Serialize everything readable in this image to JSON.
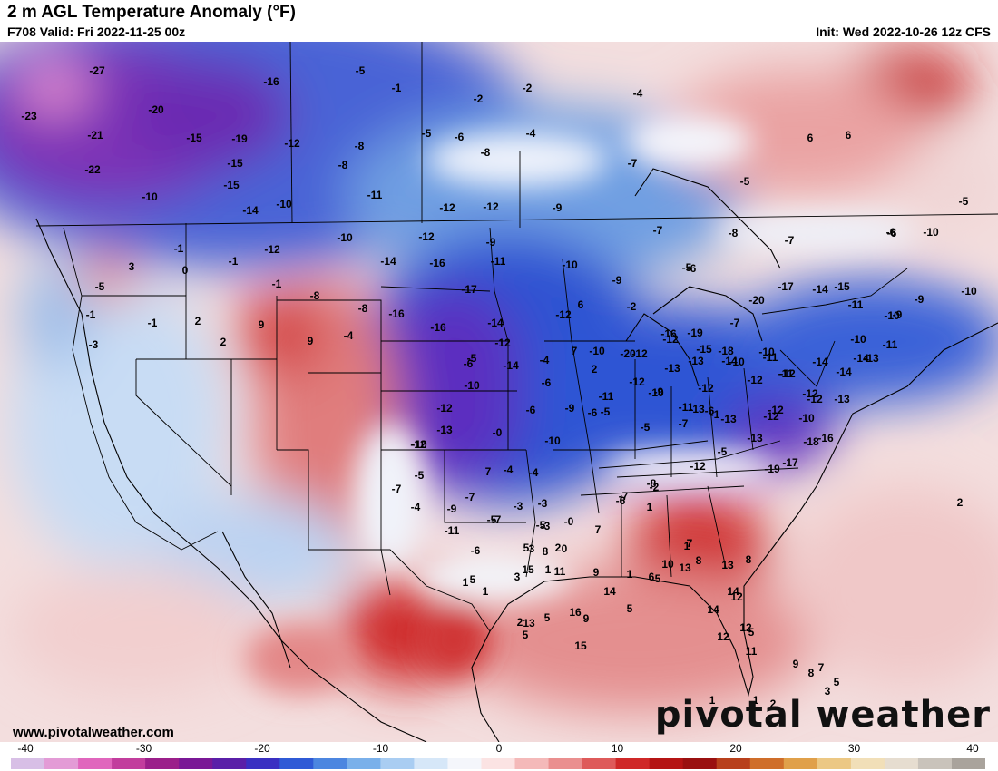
{
  "header": {
    "title": "2 m AGL Temperature Anomaly (°F)",
    "valid": "F708 Valid: Fri 2022-11-25 00z",
    "init": "Init: Wed 2022-10-26 12z CFS"
  },
  "footer": {
    "site": "www.pivotalweather.com",
    "brand": "pivotal weather"
  },
  "colorbar": {
    "ticks": [
      "-40",
      "-30",
      "-20",
      "-10",
      "0",
      "10",
      "20",
      "30",
      "40"
    ],
    "colors": [
      "#d8bfe6",
      "#e39bd6",
      "#e066bd",
      "#c23d9d",
      "#9b1f8a",
      "#7a1896",
      "#5a1fa8",
      "#3a2fc2",
      "#2f5ad6",
      "#4c86e0",
      "#7ab0ea",
      "#a9cdf2",
      "#d6e7f8",
      "#f4f6fb",
      "#fbe3e3",
      "#f4b9b9",
      "#ea8f8f",
      "#de5a5a",
      "#cf2828",
      "#b51414",
      "#9a1010",
      "#b8401c",
      "#cf6e2a",
      "#e0a04a",
      "#ecc884",
      "#f1dfb8",
      "#e6ddd0",
      "#c9c3bb",
      "#a9a39c"
    ]
  },
  "map": {
    "anomaly_labels": [
      {
        "t": "-27"
      },
      {
        "t": "-23"
      },
      {
        "t": "-21"
      },
      {
        "t": "-22"
      },
      {
        "t": "-20"
      },
      {
        "t": "-15"
      },
      {
        "t": "-19"
      },
      {
        "t": "-15"
      },
      {
        "t": "-16"
      },
      {
        "t": "-12"
      },
      {
        "t": "-15"
      },
      {
        "t": "-10"
      },
      {
        "t": "-14"
      },
      {
        "t": "-10"
      },
      {
        "t": "-5"
      },
      {
        "t": "-1"
      },
      {
        "t": "-8"
      },
      {
        "t": "-8"
      },
      {
        "t": "-11"
      },
      {
        "t": "-2"
      },
      {
        "t": "-2"
      },
      {
        "t": "-4"
      },
      {
        "t": "-5"
      },
      {
        "t": "-6"
      },
      {
        "t": "-8"
      },
      {
        "t": "-7"
      },
      {
        "t": "-12"
      },
      {
        "t": "-12"
      },
      {
        "t": "-9"
      },
      {
        "t": "-5"
      },
      {
        "t": "-4"
      },
      {
        "t": "6"
      },
      {
        "t": "6"
      },
      {
        "t": "-6"
      },
      {
        "t": "-1"
      },
      {
        "t": "-5"
      },
      {
        "t": "3"
      },
      {
        "t": "0"
      },
      {
        "t": "-1"
      },
      {
        "t": "-12"
      },
      {
        "t": "-10"
      },
      {
        "t": "-12"
      },
      {
        "t": "-9"
      },
      {
        "t": "-11"
      },
      {
        "t": "-14"
      },
      {
        "t": "-16"
      },
      {
        "t": "-17"
      },
      {
        "t": "-8"
      },
      {
        "t": "-1"
      },
      {
        "t": "-1"
      },
      {
        "t": "2"
      },
      {
        "t": "9"
      },
      {
        "t": "-1"
      },
      {
        "t": "-3"
      },
      {
        "t": "2"
      },
      {
        "t": "9"
      },
      {
        "t": "-4"
      },
      {
        "t": "-8"
      },
      {
        "t": "-16"
      },
      {
        "t": "-16"
      },
      {
        "t": "-14"
      },
      {
        "t": "-12"
      },
      {
        "t": "-14"
      },
      {
        "t": "-12"
      },
      {
        "t": "-10"
      },
      {
        "t": "-9"
      },
      {
        "t": "-7"
      },
      {
        "t": "-6"
      },
      {
        "t": "-8"
      },
      {
        "t": "-7"
      },
      {
        "t": "-6"
      },
      {
        "t": "-10"
      },
      {
        "t": "-5"
      },
      {
        "t": "-7"
      },
      {
        "t": "-5"
      },
      {
        "t": "-2"
      },
      {
        "t": "6"
      },
      {
        "t": "-5"
      },
      {
        "t": "-4"
      },
      {
        "t": "7"
      },
      {
        "t": "2"
      },
      {
        "t": "-20"
      },
      {
        "t": "-16"
      },
      {
        "t": "-19"
      },
      {
        "t": "-18"
      },
      {
        "t": "-20"
      },
      {
        "t": "-17"
      },
      {
        "t": "-15"
      },
      {
        "t": "-14"
      },
      {
        "t": "-10"
      },
      {
        "t": "-9"
      },
      {
        "t": "-10"
      },
      {
        "t": "-9"
      },
      {
        "t": "-11"
      },
      {
        "t": "-10"
      },
      {
        "t": "-11"
      },
      {
        "t": "-13"
      },
      {
        "t": "-14"
      },
      {
        "t": "-14"
      },
      {
        "t": "-14"
      },
      {
        "t": "-13"
      },
      {
        "t": "-12"
      },
      {
        "t": "-12"
      },
      {
        "t": "-11"
      },
      {
        "t": "-10"
      },
      {
        "t": "-10"
      },
      {
        "t": "-12"
      },
      {
        "t": "-14"
      },
      {
        "t": "-15"
      },
      {
        "t": "-13"
      },
      {
        "t": "-12"
      },
      {
        "t": "-13"
      },
      {
        "t": "-12"
      },
      {
        "t": "-10"
      },
      {
        "t": "-9"
      },
      {
        "t": "-11"
      },
      {
        "t": "-12"
      },
      {
        "t": "-13"
      },
      {
        "t": "-13"
      },
      {
        "t": "-12"
      },
      {
        "t": "-11"
      },
      {
        "t": "-12"
      },
      {
        "t": "-10"
      },
      {
        "t": "-16"
      },
      {
        "t": "-18"
      },
      {
        "t": "-17"
      },
      {
        "t": "-19"
      },
      {
        "t": "-13"
      },
      {
        "t": "-12"
      },
      {
        "t": "-6"
      },
      {
        "t": "-7"
      },
      {
        "t": "-5"
      },
      {
        "t": "-12"
      },
      {
        "t": "-10"
      },
      {
        "t": "-11"
      },
      {
        "t": "-9"
      },
      {
        "t": "-6"
      },
      {
        "t": "-0"
      },
      {
        "t": "-6"
      },
      {
        "t": "7"
      },
      {
        "t": "-13"
      },
      {
        "t": "-12"
      },
      {
        "t": "-6"
      },
      {
        "t": "-10"
      },
      {
        "t": "-10"
      },
      {
        "t": "-6"
      },
      {
        "t": "-5"
      },
      {
        "t": "-1"
      },
      {
        "t": "-5"
      },
      {
        "t": "-12"
      },
      {
        "t": "-8"
      },
      {
        "t": "-7"
      },
      {
        "t": "-6"
      },
      {
        "t": "-2"
      },
      {
        "t": "-0"
      },
      {
        "t": "-3"
      },
      {
        "t": "-5"
      },
      {
        "t": "-4"
      },
      {
        "t": "-7"
      },
      {
        "t": "-4"
      },
      {
        "t": "-3"
      },
      {
        "t": "-3"
      },
      {
        "t": "-5"
      },
      {
        "t": "-4"
      },
      {
        "t": "-11"
      },
      {
        "t": "-10"
      },
      {
        "t": "-12"
      },
      {
        "t": "-9"
      },
      {
        "t": "-7"
      },
      {
        "t": "-7"
      },
      {
        "t": "-6"
      },
      {
        "t": "3"
      },
      {
        "t": "2"
      },
      {
        "t": "-5"
      },
      {
        "t": "7"
      },
      {
        "t": "1"
      },
      {
        "t": "3"
      },
      {
        "t": "1"
      },
      {
        "t": "1"
      },
      {
        "t": "1"
      },
      {
        "t": "5"
      },
      {
        "t": "2"
      },
      {
        "t": "0"
      },
      {
        "t": "1"
      },
      {
        "t": "14"
      },
      {
        "t": "9"
      },
      {
        "t": "8"
      },
      {
        "t": "5"
      },
      {
        "t": "15"
      },
      {
        "t": "16"
      },
      {
        "t": "15"
      },
      {
        "t": "13"
      },
      {
        "t": "11"
      },
      {
        "t": "5"
      },
      {
        "t": "5"
      },
      {
        "t": "9"
      },
      {
        "t": "5"
      },
      {
        "t": "6"
      },
      {
        "t": "10"
      },
      {
        "t": "1"
      },
      {
        "t": "8"
      },
      {
        "t": "7"
      },
      {
        "t": "8"
      },
      {
        "t": "5"
      },
      {
        "t": "13"
      },
      {
        "t": "13"
      },
      {
        "t": "14"
      },
      {
        "t": "12"
      },
      {
        "t": "14"
      },
      {
        "t": "12"
      },
      {
        "t": "12"
      },
      {
        "t": "11"
      },
      {
        "t": "9"
      },
      {
        "t": "8"
      },
      {
        "t": "7"
      },
      {
        "t": "5"
      },
      {
        "t": "3"
      },
      {
        "t": "1"
      },
      {
        "t": "2"
      },
      {
        "t": "1"
      },
      {
        "t": "5"
      },
      {
        "t": "2"
      },
      {
        "t": "1"
      },
      {
        "t": "3"
      },
      {
        "t": "4"
      },
      {
        "t": "4"
      },
      {
        "t": "5"
      },
      {
        "t": "10"
      },
      {
        "t": "-6"
      }
    ]
  }
}
